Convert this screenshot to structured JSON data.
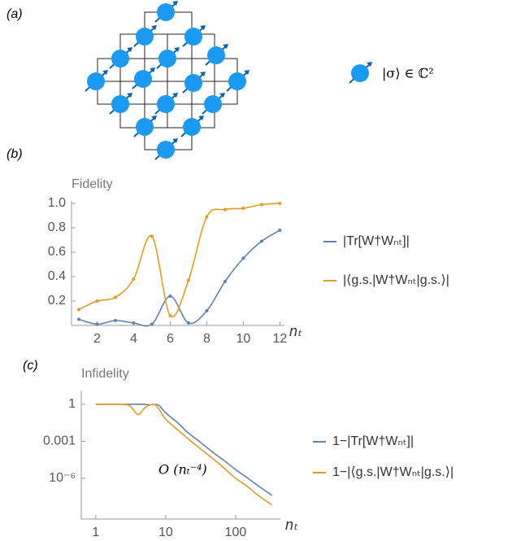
{
  "panel_labels": [
    "(a)",
    "(b)",
    "(c)"
  ],
  "lattice": {
    "legend": "|σ⟩ ∈ ℂ²"
  },
  "chart_data": [
    {
      "type": "line",
      "ylabel": "Fidelity",
      "xlabel": "nₜ",
      "markers": true,
      "x": [
        1,
        2,
        3,
        4,
        5,
        6,
        7,
        8,
        9,
        10,
        11,
        12
      ],
      "series": [
        {
          "name": "|Tr[W†Wₙₜ]|",
          "color": "#5e81b5",
          "values": [
            0.05,
            0.01,
            0.04,
            0.02,
            0.01,
            0.24,
            0.02,
            0.12,
            0.36,
            0.55,
            0.69,
            0.78
          ]
        },
        {
          "name": "|⟨g.s.|W†Wₙₜ|g.s.⟩|",
          "color": "#e19c24",
          "values": [
            0.13,
            0.2,
            0.23,
            0.38,
            0.73,
            0.08,
            0.37,
            0.89,
            0.95,
            0.96,
            0.99,
            1.0
          ]
        }
      ],
      "xlim": [
        0.6,
        12.25
      ],
      "ylim": [
        0,
        1.02
      ],
      "xticks": [
        2,
        4,
        6,
        8,
        10,
        12
      ],
      "yticks": [
        0.2,
        0.4,
        0.6,
        0.8,
        {
          "value": 1,
          "label": "1.0"
        }
      ]
    },
    {
      "type": "line",
      "ylabel": "Infidelity",
      "xlabel": "nₜ",
      "xscale": "log",
      "yscale": "log",
      "annotation": "O (nₜ⁻⁴)",
      "x": [
        1,
        2,
        3,
        4,
        5,
        6,
        7,
        8,
        10,
        15,
        20,
        30,
        50,
        70,
        100,
        150,
        200,
        300,
        330
      ],
      "series": [
        {
          "name": "1−|Tr[W†Wₙₜ]|",
          "color": "#5e81b5",
          "values": [
            1,
            1,
            1,
            1,
            0.98,
            0.9,
            0.95,
            0.8,
            0.2,
            0.03,
            0.006,
            0.001,
            0.0001,
            2.5e-05,
            5e-06,
            1e-06,
            3e-07,
            6e-08,
            4e-08
          ]
        },
        {
          "name": "1−|⟨g.s.|W†Wₙₜ|g.s.⟩|",
          "color": "#e19c24",
          "values": [
            1,
            1,
            0.8,
            0.15,
            0.5,
            0.9,
            0.9,
            0.4,
            0.06,
            0.008,
            0.002,
            0.0003,
            3e-05,
            6e-06,
            1e-06,
            2e-07,
            5e-08,
            1e-08,
            7e-09
          ]
        }
      ],
      "xlim": [
        0.62,
        436
      ],
      "ylim": [
        5e-10,
        13
      ],
      "xticks": [
        1,
        10,
        100
      ],
      "yticks": [
        1,
        0.001,
        {
          "value": 1e-06,
          "label": "10⁻⁶"
        }
      ]
    }
  ]
}
